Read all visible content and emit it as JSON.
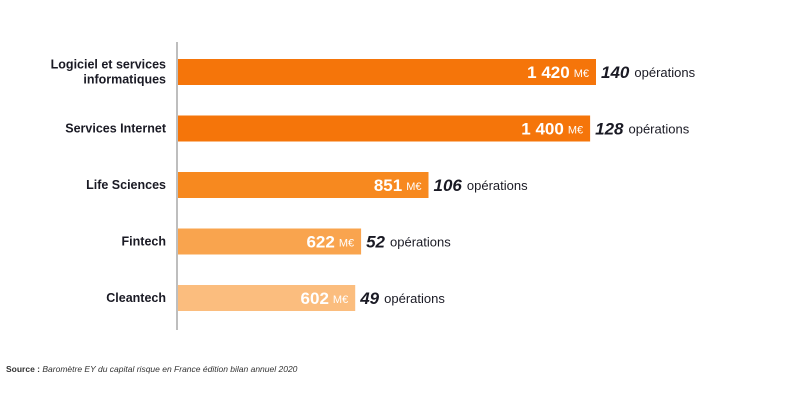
{
  "chart_data": {
    "type": "bar",
    "orientation": "horizontal",
    "categories": [
      [
        "Logiciel et services",
        "informatiques"
      ],
      [
        "Services Internet"
      ],
      [
        "Life Sciences"
      ],
      [
        "Fintech"
      ],
      [
        "Cleantech"
      ]
    ],
    "values": [
      1420,
      1400,
      851,
      622,
      602
    ],
    "value_labels": [
      "1 420",
      "1 400",
      "851",
      "622",
      "602"
    ],
    "value_unit": "M€",
    "operations": [
      140,
      128,
      106,
      52,
      49
    ],
    "operations_label": "opérations",
    "colors": [
      "#f5750a",
      "#f5750a",
      "#f7891f",
      "#f9a44e",
      "#fbbd7e"
    ],
    "grid": false,
    "legend": "none"
  },
  "source": {
    "label": "Source :",
    "text": "Baromètre EY du capital risque en France édition bilan annuel 2020"
  }
}
